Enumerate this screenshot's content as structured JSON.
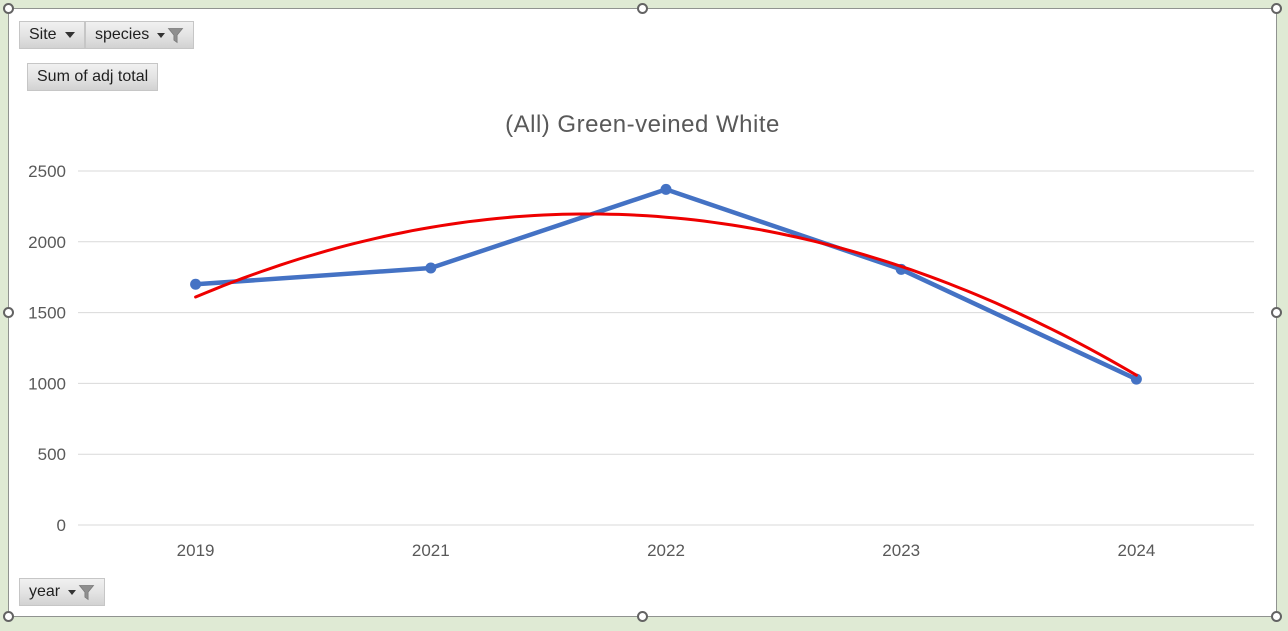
{
  "field_buttons": {
    "site": {
      "label": "Site",
      "has_filter_icon": false
    },
    "species": {
      "label": "species",
      "has_filter_icon": true
    },
    "value": {
      "label": "Sum of adj total",
      "has_filter_icon": false
    },
    "axis": {
      "label": "year",
      "has_filter_icon": true
    }
  },
  "chart_data": {
    "type": "line",
    "title": "(All) Green-veined White",
    "categories": [
      "2019",
      "2021",
      "2022",
      "2023",
      "2024"
    ],
    "series": [
      {
        "name": "Sum of adj total",
        "color": "#4472c4",
        "marker": "circle",
        "values": [
          1700,
          1815,
          2370,
          1805,
          1030
        ]
      }
    ],
    "trendline": {
      "type": "polynomial",
      "order": 2,
      "color": "#ee0000",
      "coefficients": [
        1610,
        702,
        -210
      ],
      "note": "value = 1610 + 702*t - 210*t^2 where t is category index 0..4; endpoints ~1610 and ~1060, peak ~2195"
    },
    "xlabel": "",
    "ylabel": "",
    "ylim": [
      0,
      2500
    ],
    "yticks": [
      0,
      500,
      1000,
      1500,
      2000,
      2500
    ],
    "grid": true,
    "legend": false,
    "axis_text_color": "#595959",
    "gridline_color": "#d9d9d9",
    "title_color": "#595959"
  }
}
